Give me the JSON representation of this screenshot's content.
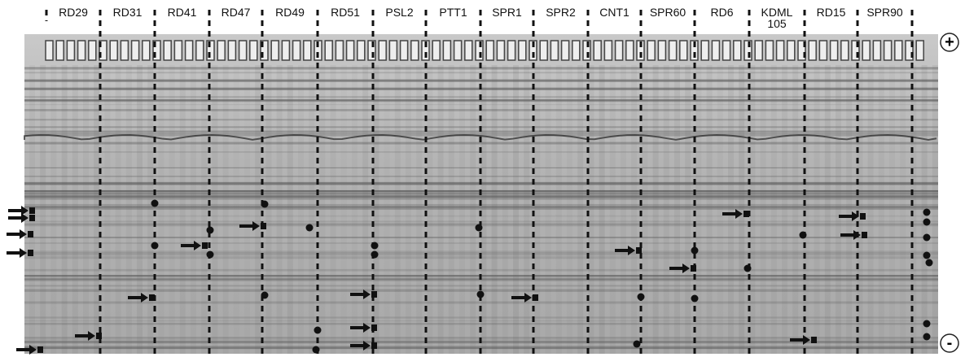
{
  "lanes": [
    "RD29",
    "RD31",
    "RD41",
    "RD47",
    "RD49",
    "RD51",
    "PSL2",
    "PTT1",
    "SPR1",
    "SPR2",
    "CNT1",
    "SPR60",
    "RD6",
    "KDML 105",
    "RD15",
    "SPR90"
  ],
  "polarity": {
    "top": "+",
    "bottom": "-"
  }
}
